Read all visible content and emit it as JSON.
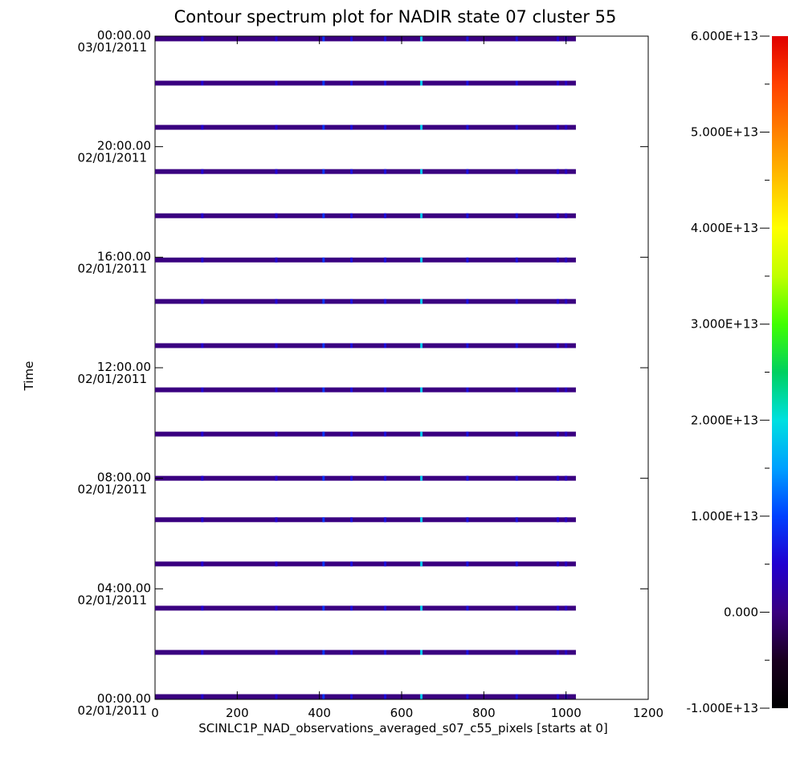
{
  "chart_data": {
    "type": "heatmap",
    "title": "Contour spectrum plot for NADIR state 07 cluster 55",
    "xlabel": "SCINLC1P_NAD_observations_averaged_s07_c55_pixels [starts at 0]",
    "ylabel": "Time",
    "xlim": [
      0,
      1200
    ],
    "x_ticks": [
      "0",
      "200",
      "400",
      "600",
      "800",
      "1000",
      "1200"
    ],
    "y_ticks": [
      {
        "time": "00:00.00",
        "date": "02/01/2011"
      },
      {
        "time": "04:00.00",
        "date": "02/01/2011"
      },
      {
        "time": "08:00.00",
        "date": "02/01/2011"
      },
      {
        "time": "12:00.00",
        "date": "02/01/2011"
      },
      {
        "time": "16:00.00",
        "date": "02/01/2011"
      },
      {
        "time": "20:00.00",
        "date": "02/01/2011"
      },
      {
        "time": "00:00.00",
        "date": "03/01/2011"
      }
    ],
    "ylim_hours": [
      0,
      24
    ],
    "observation_hours": [
      0.1,
      1.7,
      3.3,
      4.9,
      6.5,
      8.0,
      9.6,
      11.2,
      12.8,
      14.4,
      15.9,
      17.5,
      19.1,
      20.7,
      22.3,
      23.9
    ],
    "pixel_range": [
      0,
      1023
    ],
    "band_base_value": 0,
    "highlight_pixels": [
      {
        "pixel": 115,
        "value": 5000000000000.0
      },
      {
        "pixel": 295,
        "value": 5000000000000.0
      },
      {
        "pixel": 410,
        "value": 9000000000000.0
      },
      {
        "pixel": 478,
        "value": 6000000000000.0
      },
      {
        "pixel": 560,
        "value": 6000000000000.0
      },
      {
        "pixel": 648,
        "value": 18000000000000.0
      },
      {
        "pixel": 760,
        "value": 6000000000000.0
      },
      {
        "pixel": 880,
        "value": 6000000000000.0
      },
      {
        "pixel": 980,
        "value": 5000000000000.0
      },
      {
        "pixel": 1000,
        "value": 4000000000000.0
      }
    ],
    "colorbar": {
      "min": -10000000000000.0,
      "max": 60000000000000.0,
      "tick_labels": [
        "6.000E+13",
        "5.000E+13",
        "4.000E+13",
        "3.000E+13",
        "2.000E+13",
        "1.000E+13",
        "0.000",
        "-1.000E+13"
      ],
      "tick_values": [
        60000000000000.0,
        50000000000000.0,
        40000000000000.0,
        30000000000000.0,
        20000000000000.0,
        10000000000000.0,
        0,
        -10000000000000.0
      ],
      "colors": [
        "#000000",
        "#1a0020",
        "#3a0080",
        "#2000d0",
        "#0040ff",
        "#00a0ff",
        "#00e0e0",
        "#00d060",
        "#40ff00",
        "#c0ff00",
        "#ffff00",
        "#ffc000",
        "#ff8000",
        "#ff4000",
        "#e00000"
      ]
    }
  }
}
